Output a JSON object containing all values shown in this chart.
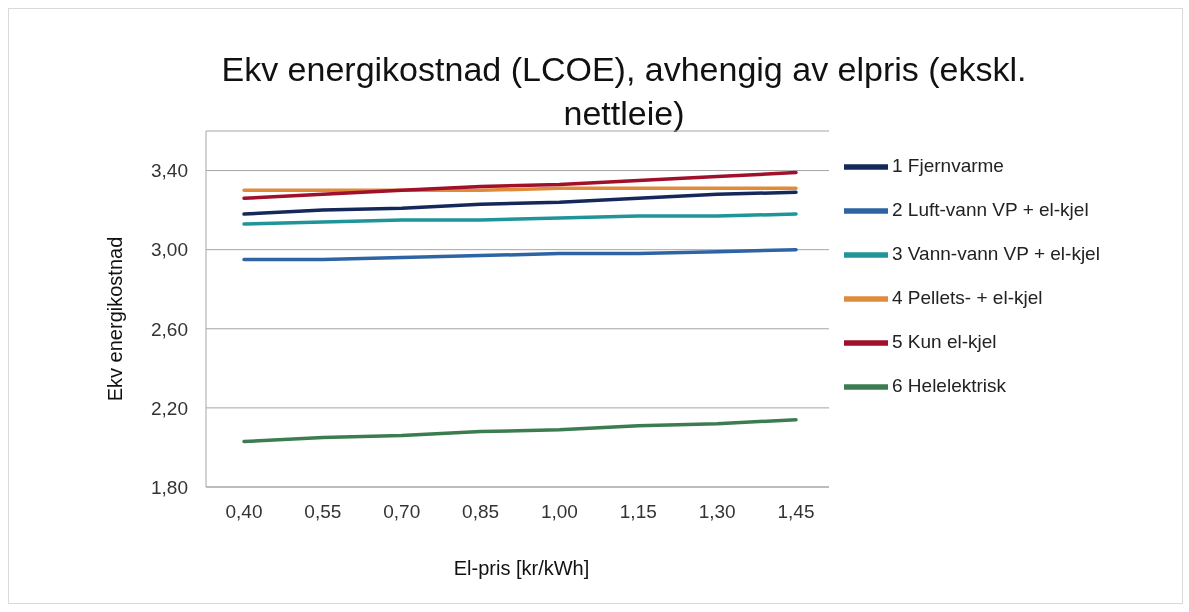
{
  "chart_data": {
    "type": "line",
    "title": "Ekv energikostnad (LCOE), avhengig av elpris (ekskl. nettleie)",
    "xlabel": "El-pris [kr/kWh]",
    "ylabel": "Ekv energikostnad",
    "categories": [
      "0,40",
      "0,55",
      "0,70",
      "0,85",
      "1,00",
      "1,15",
      "1,30",
      "1,45"
    ],
    "series": [
      {
        "name": "1 Fjernvarme",
        "color": "#14285a",
        "values": [
          3.18,
          3.2,
          3.21,
          3.23,
          3.24,
          3.26,
          3.28,
          3.29
        ]
      },
      {
        "name": "2 Luft-vann VP + el-kjel",
        "color": "#2e64a4",
        "values": [
          2.95,
          2.95,
          2.96,
          2.97,
          2.98,
          2.98,
          2.99,
          3.0
        ]
      },
      {
        "name": "3 Vann-vann VP + el-kjel",
        "color": "#1f9599",
        "values": [
          3.13,
          3.14,
          3.15,
          3.15,
          3.16,
          3.17,
          3.17,
          3.18
        ]
      },
      {
        "name": "4 Pellets- + el-kjel",
        "color": "#e08a3c",
        "values": [
          3.3,
          3.3,
          3.3,
          3.3,
          3.31,
          3.31,
          3.31,
          3.31
        ]
      },
      {
        "name": "5 Kun el-kjel",
        "color": "#a0102a",
        "values": [
          3.26,
          3.28,
          3.3,
          3.32,
          3.33,
          3.35,
          3.37,
          3.39
        ]
      },
      {
        "name": "6 Helelektrisk",
        "color": "#3b7d50",
        "values": [
          2.03,
          2.05,
          2.06,
          2.08,
          2.09,
          2.11,
          2.12,
          2.14
        ]
      }
    ],
    "ylim": [
      1.8,
      3.6
    ],
    "yticks": [
      {
        "value": 1.8,
        "label": "1,80"
      },
      {
        "value": 2.2,
        "label": "2,20"
      },
      {
        "value": 2.6,
        "label": "2,60"
      },
      {
        "value": 3.0,
        "label": "3,00"
      },
      {
        "value": 3.4,
        "label": "3,40"
      }
    ],
    "grid": "y",
    "legend": "right",
    "marker": "none",
    "line_style": "solid"
  }
}
